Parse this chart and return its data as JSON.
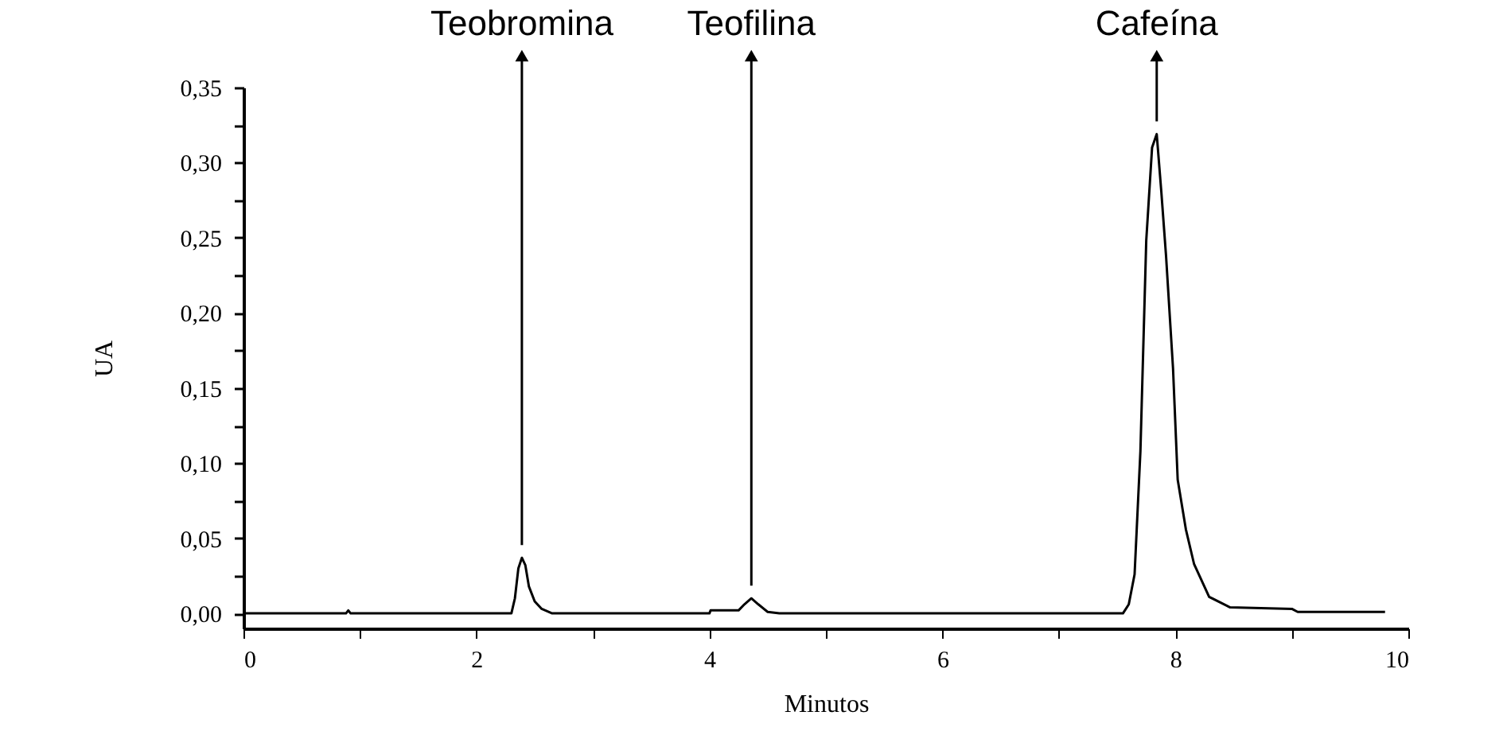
{
  "chart_data": {
    "type": "line",
    "xlabel": "Minutos",
    "ylabel": "UA",
    "annotations": [
      {
        "text": "Teobromina",
        "x": 2.39,
        "y": 0.037
      },
      {
        "text": "Teofilina",
        "x": 4.36,
        "y": 0.01
      },
      {
        "text": "Cafeína",
        "x": 7.84,
        "y": 0.319
      }
    ],
    "x": [
      0,
      0.88,
      0.9,
      0.92,
      2.3,
      2.33,
      2.36,
      2.39,
      2.42,
      2.45,
      2.5,
      2.56,
      2.65,
      4.0,
      4.01,
      4.25,
      4.3,
      4.36,
      4.42,
      4.5,
      4.6,
      7.55,
      7.6,
      7.65,
      7.7,
      7.75,
      7.8,
      7.84,
      7.88,
      7.92,
      7.98,
      8.02,
      8.09,
      8.16,
      8.29,
      8.47,
      9.0,
      9.05,
      9.8
    ],
    "series": [
      {
        "color": "#000000",
        "values": [
          0,
          0,
          0.002,
          0,
          0,
          0.01,
          0.03,
          0.037,
          0.032,
          0.018,
          0.008,
          0.003,
          0,
          0,
          0.002,
          0.002,
          0.006,
          0.01,
          0.006,
          0.001,
          0,
          0,
          0.006,
          0.026,
          0.108,
          0.248,
          0.31,
          0.319,
          0.28,
          0.238,
          0.163,
          0.089,
          0.056,
          0.033,
          0.011,
          0.004,
          0.003,
          0.001,
          0.001
        ]
      }
    ],
    "xlim": [
      0,
      10
    ],
    "ylim": [
      -0.01,
      0.35
    ],
    "xticks": [
      0,
      {
        "value": 1,
        "label": null
      },
      2,
      {
        "value": 3,
        "label": null
      },
      4,
      {
        "value": 5,
        "label": null
      },
      6,
      {
        "value": 7,
        "label": null
      },
      8,
      {
        "value": 9,
        "label": null
      },
      10
    ],
    "yticks": [
      {
        "value": 0,
        "label": "0,00"
      },
      {
        "value": 0.025,
        "label": null
      },
      {
        "value": 0.05,
        "label": "0,05"
      },
      {
        "value": 0.075,
        "label": null
      },
      {
        "value": 0.1,
        "label": "0,10"
      },
      {
        "value": 0.125,
        "label": null
      },
      {
        "value": 0.15,
        "label": "0,15"
      },
      {
        "value": 0.175,
        "label": null
      },
      {
        "value": 0.2,
        "label": "0,20"
      },
      {
        "value": 0.225,
        "label": null
      },
      {
        "value": 0.25,
        "label": "0,25"
      },
      {
        "value": 0.275,
        "label": null
      },
      {
        "value": 0.3,
        "label": "0,30"
      },
      {
        "value": 0.325,
        "label": null
      },
      {
        "value": 0.35,
        "label": "0,35"
      }
    ],
    "grid": false,
    "legend": false,
    "marker": "none",
    "line_style": "solid"
  }
}
